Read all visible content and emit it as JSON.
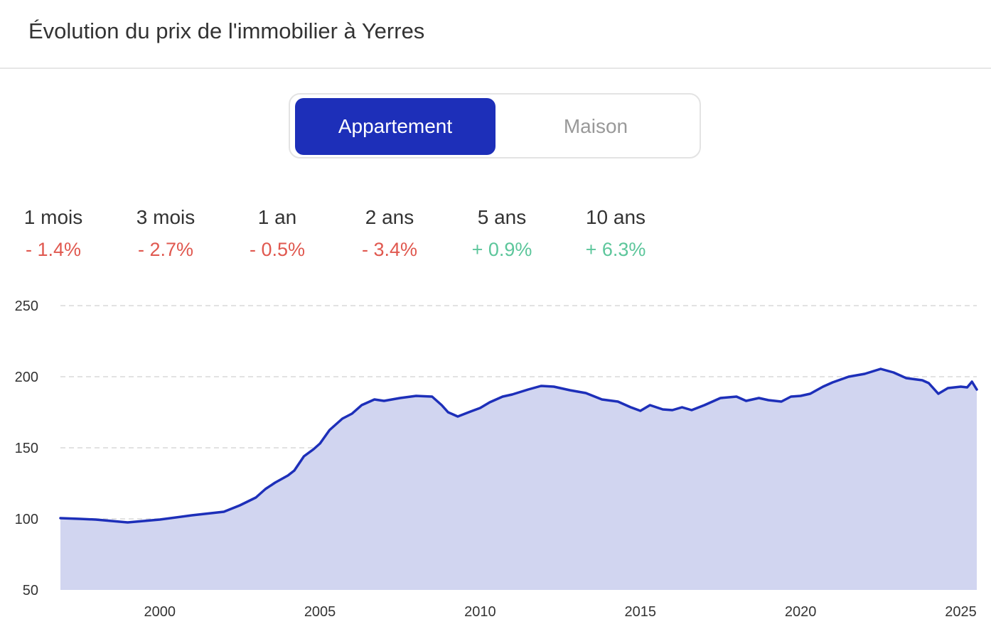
{
  "header": {
    "title": "Évolution du prix de l'immobilier à Yerres"
  },
  "toggle": {
    "options": [
      "Appartement",
      "Maison"
    ],
    "selected": "Appartement",
    "accent_color": "#1d2fb9"
  },
  "stats": [
    {
      "label": "1 mois",
      "value": "- 1.4%",
      "trend": "down"
    },
    {
      "label": "3 mois",
      "value": "- 2.7%",
      "trend": "down"
    },
    {
      "label": "1 an",
      "value": "- 0.5%",
      "trend": "down"
    },
    {
      "label": "2 ans",
      "value": "- 3.4%",
      "trend": "down"
    },
    {
      "label": "5 ans",
      "value": "+ 0.9%",
      "trend": "up"
    },
    {
      "label": "10 ans",
      "value": "+ 6.3%",
      "trend": "up"
    }
  ],
  "colors": {
    "down": "#e0584f",
    "up": "#5cc69b",
    "line": "#1d2fb9",
    "area": "#d1d5f0",
    "grid": "#d9d9d9"
  },
  "chart_data": {
    "type": "area",
    "title": "",
    "xlabel": "",
    "ylabel": "",
    "xlim": [
      1996.9,
      2025.5
    ],
    "ylim": [
      50,
      250
    ],
    "x_ticks": [
      2000,
      2005,
      2010,
      2015,
      2020,
      2025
    ],
    "y_ticks": [
      50,
      100,
      150,
      200,
      250
    ],
    "grid": "horizontal dashed",
    "series": [
      {
        "points": [
          [
            1996.9,
            100.5
          ],
          [
            1997.5,
            100.0
          ],
          [
            1998.0,
            99.5
          ],
          [
            1999.0,
            97.5
          ],
          [
            2000.0,
            99.5
          ],
          [
            2001.0,
            102.5
          ],
          [
            2002.0,
            105.0
          ],
          [
            2002.5,
            109.5
          ],
          [
            2003.0,
            115.0
          ],
          [
            2003.3,
            121.0
          ],
          [
            2003.6,
            125.5
          ],
          [
            2004.0,
            130.5
          ],
          [
            2004.2,
            134.0
          ],
          [
            2004.5,
            144.0
          ],
          [
            2004.8,
            149.0
          ],
          [
            2005.0,
            153.0
          ],
          [
            2005.3,
            162.5
          ],
          [
            2005.7,
            170.5
          ],
          [
            2006.0,
            174.0
          ],
          [
            2006.3,
            180.0
          ],
          [
            2006.7,
            184.0
          ],
          [
            2007.0,
            183.0
          ],
          [
            2007.5,
            185.0
          ],
          [
            2008.0,
            186.5
          ],
          [
            2008.5,
            186.0
          ],
          [
            2008.8,
            180.0
          ],
          [
            2009.0,
            175.0
          ],
          [
            2009.3,
            172.0
          ],
          [
            2009.7,
            175.5
          ],
          [
            2010.0,
            178.0
          ],
          [
            2010.3,
            182.0
          ],
          [
            2010.7,
            186.0
          ],
          [
            2011.0,
            187.5
          ],
          [
            2011.5,
            191.0
          ],
          [
            2011.9,
            193.5
          ],
          [
            2012.3,
            193.0
          ],
          [
            2012.8,
            190.5
          ],
          [
            2013.3,
            188.5
          ],
          [
            2013.8,
            184.0
          ],
          [
            2014.3,
            182.5
          ],
          [
            2014.7,
            178.5
          ],
          [
            2015.0,
            176.0
          ],
          [
            2015.3,
            180.0
          ],
          [
            2015.7,
            177.0
          ],
          [
            2016.0,
            176.5
          ],
          [
            2016.3,
            178.5
          ],
          [
            2016.6,
            176.5
          ],
          [
            2017.0,
            180.0
          ],
          [
            2017.5,
            185.0
          ],
          [
            2018.0,
            186.0
          ],
          [
            2018.3,
            183.0
          ],
          [
            2018.7,
            185.0
          ],
          [
            2019.0,
            183.5
          ],
          [
            2019.4,
            182.5
          ],
          [
            2019.7,
            186.0
          ],
          [
            2020.0,
            186.5
          ],
          [
            2020.3,
            188.0
          ],
          [
            2020.7,
            193.0
          ],
          [
            2021.0,
            196.0
          ],
          [
            2021.5,
            200.0
          ],
          [
            2022.0,
            202.0
          ],
          [
            2022.5,
            205.5
          ],
          [
            2022.9,
            203.0
          ],
          [
            2023.3,
            199.0
          ],
          [
            2023.8,
            197.5
          ],
          [
            2024.0,
            195.5
          ],
          [
            2024.3,
            188.0
          ],
          [
            2024.6,
            192.0
          ],
          [
            2025.0,
            193.0
          ],
          [
            2025.2,
            192.5
          ],
          [
            2025.35,
            196.5
          ],
          [
            2025.5,
            191.0
          ]
        ]
      }
    ]
  }
}
